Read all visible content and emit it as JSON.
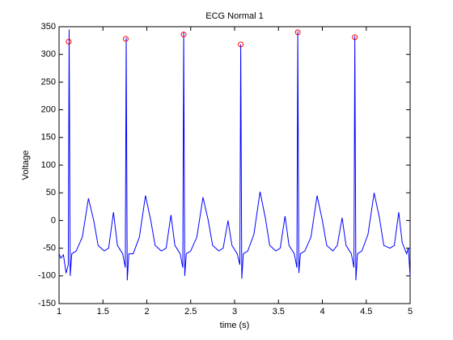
{
  "chart_data": {
    "type": "line",
    "title": "ECG Normal 1",
    "xlabel": "time (s)",
    "ylabel": "Voltage",
    "xlim": [
      1,
      5
    ],
    "ylim": [
      -150,
      350
    ],
    "xticks": [
      1,
      1.5,
      2,
      2.5,
      3,
      3.5,
      4,
      4.5,
      5
    ],
    "yticks": [
      -150,
      -100,
      -50,
      0,
      50,
      100,
      150,
      200,
      250,
      300,
      350
    ],
    "grid": false,
    "series": [
      {
        "color": "#0000ff",
        "marker": "none",
        "line": true,
        "x": [
          1.0,
          1.02,
          1.05,
          1.08,
          1.105,
          1.115,
          1.127,
          1.145,
          1.195,
          1.265,
          1.335,
          1.395,
          1.445,
          1.515,
          1.565,
          1.62,
          1.665,
          1.725,
          1.755,
          1.765,
          1.777,
          1.795,
          1.845,
          1.915,
          1.985,
          2.045,
          2.095,
          2.165,
          2.22,
          2.275,
          2.32,
          2.38,
          2.41,
          2.42,
          2.432,
          2.45,
          2.5,
          2.57,
          2.64,
          2.7,
          2.75,
          2.82,
          2.87,
          2.925,
          2.97,
          3.03,
          3.06,
          3.07,
          3.082,
          3.1,
          3.15,
          3.22,
          3.29,
          3.35,
          3.4,
          3.47,
          3.52,
          3.575,
          3.62,
          3.68,
          3.71,
          3.72,
          3.732,
          3.75,
          3.8,
          3.87,
          3.94,
          4.0,
          4.05,
          4.12,
          4.17,
          4.225,
          4.27,
          4.33,
          4.36,
          4.37,
          4.382,
          4.4,
          4.45,
          4.52,
          4.59,
          4.65,
          4.7,
          4.77,
          4.82,
          4.87,
          4.91,
          4.96,
          4.98,
          5.0
        ],
        "values": [
          -60,
          -68,
          -62,
          -95,
          -80,
          345,
          -100,
          -60,
          -55,
          -30,
          40,
          0,
          -45,
          -55,
          -50,
          15,
          -45,
          -60,
          -85,
          330,
          -108,
          -60,
          -60,
          -30,
          45,
          0,
          -45,
          -55,
          -50,
          10,
          -45,
          -60,
          -85,
          340,
          -100,
          -60,
          -55,
          -30,
          42,
          0,
          -45,
          -55,
          -50,
          0,
          -45,
          -60,
          -80,
          318,
          -105,
          -60,
          -55,
          -25,
          52,
          5,
          -45,
          -55,
          -50,
          8,
          -45,
          -60,
          -85,
          342,
          -95,
          -60,
          -55,
          -30,
          45,
          0,
          -45,
          -55,
          -45,
          5,
          -45,
          -60,
          -85,
          333,
          -108,
          -60,
          -55,
          -25,
          50,
          5,
          -45,
          -50,
          -45,
          15,
          -40,
          -60,
          -50,
          -100
        ]
      },
      {
        "color": "#ff0000",
        "marker": "circle",
        "line": false,
        "x": [
          1.11,
          1.76,
          2.42,
          3.07,
          3.72,
          4.37
        ],
        "values": [
          323,
          328,
          336,
          318,
          340,
          331
        ]
      }
    ]
  }
}
